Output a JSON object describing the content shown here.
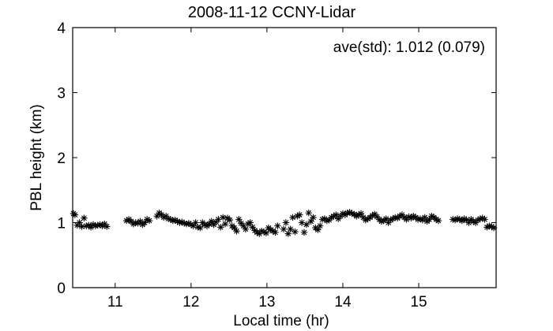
{
  "chart_data": {
    "type": "scatter",
    "title": "2008-11-12 CCNY-Lidar",
    "xlabel": "Local time (hr)",
    "ylabel": "PBL height (km)",
    "annotation": "ave(std): 1.012 (0.079)",
    "xlim": [
      10.44,
      16.02
    ],
    "ylim": [
      0,
      4
    ],
    "xticks": [
      11,
      12,
      13,
      14,
      15
    ],
    "yticks": [
      0,
      1,
      2,
      3,
      4
    ],
    "grid": false,
    "marker": "asterisk",
    "marker_color": "#000000",
    "series": [
      {
        "x": [
          10.45,
          10.47,
          10.5,
          10.53,
          10.56,
          10.59,
          10.62,
          10.65,
          10.68,
          10.71,
          10.74,
          10.77,
          10.8,
          10.83,
          10.86,
          10.89,
          11.15,
          11.18,
          11.21,
          11.24,
          11.27,
          11.3,
          11.33,
          11.36,
          11.39,
          11.42,
          11.45,
          11.55,
          11.58,
          11.61,
          11.64,
          11.67,
          11.7,
          11.73,
          11.76,
          11.79,
          11.82,
          11.85,
          11.88,
          11.91,
          11.94,
          11.97,
          12.0,
          12.03,
          12.06,
          12.09,
          12.12,
          12.15,
          12.18,
          12.21,
          12.24,
          12.27,
          12.3,
          12.33,
          12.36,
          12.39,
          12.42,
          12.45,
          12.48,
          12.51,
          12.54,
          12.57,
          12.6,
          12.63,
          12.66,
          12.69,
          12.72,
          12.75,
          12.78,
          12.81,
          12.84,
          12.87,
          12.9,
          12.93,
          12.96,
          12.99,
          13.02,
          13.05,
          13.08,
          13.11,
          13.14,
          13.22,
          13.25,
          13.28,
          13.31,
          13.34,
          13.37,
          13.4,
          13.43,
          13.46,
          13.49,
          13.52,
          13.55,
          13.58,
          13.61,
          13.64,
          13.67,
          13.7,
          13.73,
          13.76,
          13.79,
          13.82,
          13.85,
          13.88,
          13.91,
          13.94,
          13.97,
          14.0,
          14.03,
          14.06,
          14.09,
          14.12,
          14.15,
          14.18,
          14.21,
          14.24,
          14.27,
          14.3,
          14.33,
          14.36,
          14.39,
          14.42,
          14.45,
          14.48,
          14.51,
          14.54,
          14.57,
          14.6,
          14.63,
          14.66,
          14.69,
          14.72,
          14.75,
          14.78,
          14.81,
          14.84,
          14.87,
          14.9,
          14.93,
          14.96,
          14.99,
          15.02,
          15.05,
          15.08,
          15.11,
          15.14,
          15.17,
          15.2,
          15.23,
          15.26,
          15.45,
          15.48,
          15.51,
          15.54,
          15.57,
          15.6,
          15.63,
          15.66,
          15.69,
          15.72,
          15.75,
          15.78,
          15.81,
          15.84,
          15.87,
          15.9,
          15.93,
          15.96,
          15.99
        ],
        "y": [
          1.14,
          1.12,
          0.96,
          1.0,
          0.94,
          1.07,
          0.95,
          0.96,
          0.93,
          0.97,
          0.95,
          0.96,
          0.97,
          0.95,
          0.98,
          0.94,
          1.03,
          1.05,
          1.02,
          0.98,
          1.0,
          0.99,
          1.02,
          0.97,
          1.0,
          1.05,
          1.03,
          1.1,
          1.15,
          1.12,
          1.08,
          1.1,
          1.06,
          1.05,
          1.03,
          1.04,
          1.02,
          1.0,
          1.01,
          0.99,
          0.98,
          0.99,
          0.97,
          0.95,
          1.0,
          0.93,
          0.92,
          1.0,
          0.97,
          0.95,
          0.98,
          1.02,
          0.97,
          1.01,
          1.05,
          0.93,
          1.08,
          0.98,
          1.07,
          1.04,
          0.95,
          0.92,
          0.87,
          1.05,
          0.99,
          0.95,
          0.9,
          0.98,
          1.0,
          0.93,
          0.88,
          0.85,
          0.83,
          0.87,
          0.86,
          0.84,
          0.92,
          0.89,
          0.87,
          0.85,
          0.95,
          0.9,
          1.0,
          0.83,
          0.9,
          1.08,
          0.86,
          1.1,
          1.12,
          1.0,
          0.85,
          0.97,
          1.15,
          1.02,
          1.08,
          0.92,
          0.89,
          0.95,
          1.05,
          1.06,
          1.03,
          1.04,
          1.08,
          1.1,
          1.12,
          1.06,
          1.1,
          1.14,
          1.12,
          1.15,
          1.16,
          1.14,
          1.13,
          1.1,
          1.12,
          1.14,
          1.08,
          1.04,
          1.06,
          1.08,
          1.11,
          1.13,
          1.09,
          1.05,
          1.02,
          1.03,
          1.06,
          1.0,
          1.04,
          1.06,
          1.08,
          1.07,
          1.1,
          1.12,
          1.08,
          1.05,
          1.09,
          1.07,
          1.1,
          1.08,
          1.05,
          1.06,
          1.04,
          1.08,
          1.02,
          1.05,
          1.1,
          1.08,
          1.05,
          1.03,
          1.05,
          1.04,
          1.06,
          1.05,
          1.03,
          1.06,
          1.04,
          1.0,
          1.05,
          1.02,
          1.0,
          1.04,
          1.06,
          1.07,
          1.05,
          0.93,
          0.95,
          0.94,
          0.92
        ]
      }
    ]
  }
}
